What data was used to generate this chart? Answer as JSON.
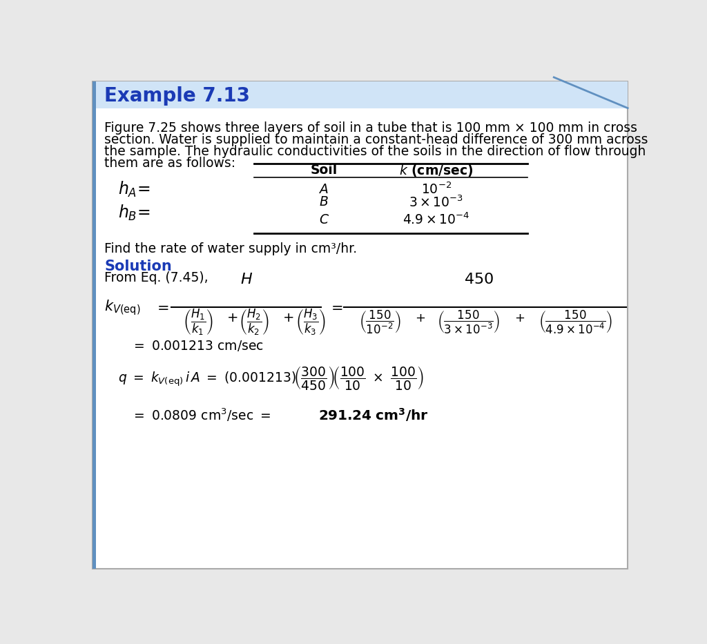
{
  "title": "Example 7.13",
  "title_color": "#1a3ab5",
  "header_bg": "#d0e4f7",
  "border_color": "#6090c0",
  "body_bg": "#ffffff",
  "page_bg": "#e8e8e8",
  "paragraph_line1": "Figure 7.25 shows three layers of soil in a tube that is 100 mm × 100 mm in cross",
  "paragraph_line2": "section. Water is supplied to maintain a constant-head difference of 300 mm across",
  "paragraph_line3": "the sample. The hydraulic conductivities of the soils in the direction of flow through",
  "paragraph_line4": "them are as follows:",
  "find_text": "Find the rate of water supply in cm³/hr.",
  "solution_label": "Solution",
  "from_eq": "From Eq. (7.45),",
  "table_soils": [
    "A",
    "B",
    "C"
  ],
  "table_k": [
    "$10^{-2}$",
    "$3 \\times 10^{-3}$",
    "$4.9 \\times 10^{-4}$"
  ],
  "font_size_title": 20,
  "font_size_body": 13.5,
  "font_size_solution": 14,
  "font_size_eq": 13
}
